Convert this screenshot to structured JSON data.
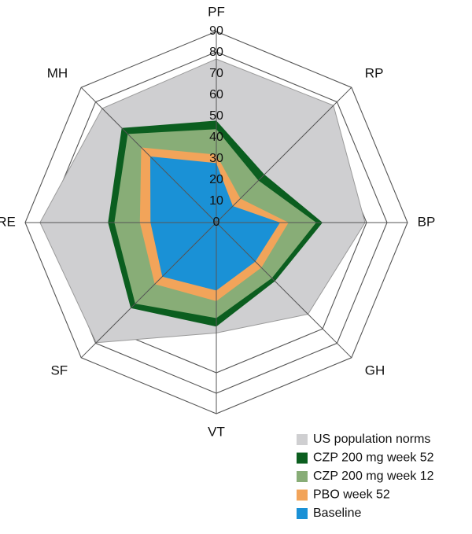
{
  "chart_data": {
    "type": "radar",
    "title": "",
    "axes": [
      "PF",
      "RP",
      "BP",
      "GH",
      "VT",
      "SF",
      "RE",
      "MH"
    ],
    "rlim": [
      0,
      90
    ],
    "ticks": [
      0,
      10,
      20,
      30,
      40,
      50,
      60,
      70,
      80,
      90
    ],
    "grid": true,
    "legend_position": "bottom-right",
    "series": [
      {
        "name": "US population norms",
        "color": "#cfcfd1",
        "values": [
          77,
          78,
          70,
          61,
          52,
          80,
          83,
          76
        ]
      },
      {
        "name": "CZP 200 mg week 52",
        "color": "#0b5e1f",
        "values": [
          48,
          32,
          50,
          39,
          49,
          57,
          51,
          63
        ]
      },
      {
        "name": "CZP 200 mg week 12",
        "color": "#88ad77",
        "values": [
          44,
          28,
          47,
          37,
          45,
          54,
          48,
          59
        ]
      },
      {
        "name": "PBO week 52",
        "color": "#f2a45a",
        "values": [
          32,
          16,
          34,
          30,
          37,
          41,
          36,
          50
        ]
      },
      {
        "name": "Baseline",
        "color": "#1a91d6",
        "values": [
          28,
          11,
          30,
          26,
          32,
          36,
          31,
          44
        ]
      }
    ]
  }
}
